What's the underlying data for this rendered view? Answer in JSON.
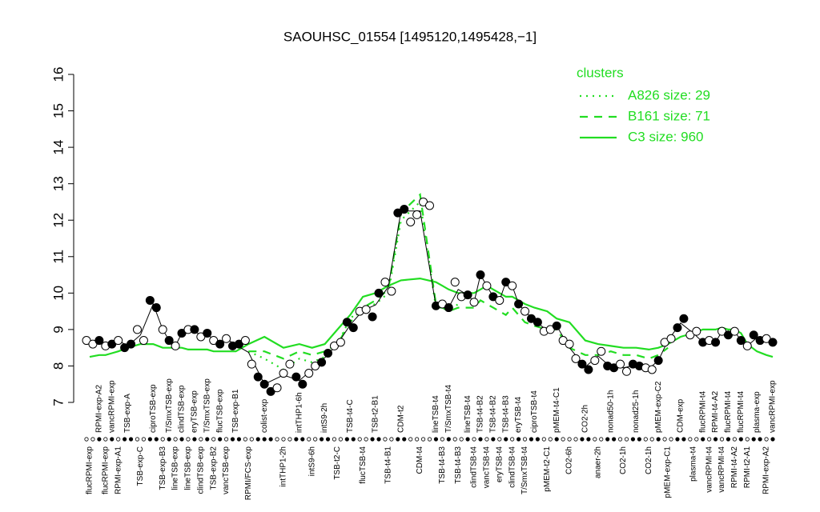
{
  "chart_data": {
    "type": "line",
    "title": "SAOUHSC_01554 [1495120,1495428,−1]",
    "ylim": [
      7,
      16
    ],
    "yticks": [
      7,
      8,
      9,
      10,
      11,
      12,
      13,
      14,
      15,
      16
    ],
    "legend_title": "clusters",
    "legend_position": "upper right",
    "groups": [
      {
        "name": "flucRPMI-exp",
        "values": [
          8.7,
          8.6
        ]
      },
      {
        "name": "RPMI-exp-A2",
        "values": [
          8.7
        ]
      },
      {
        "name": "flucRPMI-exp",
        "values": [
          8.55
        ]
      },
      {
        "name": "vancRPMI-exp",
        "values": [
          8.6
        ]
      },
      {
        "name": "RPMI-exp-A1",
        "values": [
          8.7
        ]
      },
      {
        "name": "TSB-exp-A",
        "values": [
          8.5,
          8.6
        ]
      },
      {
        "name": "TSB-exp-C",
        "values": [
          9.0,
          8.7
        ]
      },
      {
        "name": "ciproTSB-exp",
        "values": [
          9.8,
          9.6
        ]
      },
      {
        "name": "TSB-exp-B3",
        "values": [
          9.0
        ]
      },
      {
        "name": "T/SmxTSB-exp",
        "values": [
          8.7
        ]
      },
      {
        "name": "lineTSB-exp",
        "values": [
          8.55
        ]
      },
      {
        "name": "clindTSB-exp",
        "values": [
          8.9
        ]
      },
      {
        "name": "lineTSB-exp",
        "values": [
          9.0
        ]
      },
      {
        "name": "eryTSB-exp",
        "values": [
          9.0
        ]
      },
      {
        "name": "clindTSB-exp",
        "values": [
          8.8
        ]
      },
      {
        "name": "T/SmxTSB-exp",
        "values": [
          8.9
        ]
      },
      {
        "name": "TSB-exp-B2",
        "values": [
          8.7
        ]
      },
      {
        "name": "flucTSB-exp",
        "values": [
          8.6
        ]
      },
      {
        "name": "vancTSB-exp",
        "values": [
          8.75
        ]
      },
      {
        "name": "TSB-exp-B1",
        "values": [
          8.55,
          8.6
        ]
      },
      {
        "name": "RPMI/FCS-exp",
        "values": [
          8.7,
          8.05
        ]
      },
      {
        "name": "colist-exp",
        "values": [
          7.7,
          7.5,
          7.3
        ]
      },
      {
        "name": "intTHP1-2h",
        "values": [
          7.4,
          7.8,
          8.05
        ]
      },
      {
        "name": "intTHP1-6h",
        "values": [
          7.7,
          7.5
        ]
      },
      {
        "name": "intS9-6h",
        "values": [
          7.8,
          8.0
        ]
      },
      {
        "name": "intS9-2h",
        "values": [
          8.1,
          8.35
        ]
      },
      {
        "name": "TSB-t2-C",
        "values": [
          8.55,
          8.65
        ]
      },
      {
        "name": "TSB-t4-C",
        "values": [
          9.2,
          9.05
        ]
      },
      {
        "name": "flucTSB-t4",
        "values": [
          9.5,
          9.55
        ]
      },
      {
        "name": "TSB-t2-B1",
        "values": [
          9.35,
          10.0
        ]
      },
      {
        "name": "TSB-t4-B1",
        "values": [
          10.3,
          10.05
        ]
      },
      {
        "name": "CDM-t2",
        "values": [
          12.2,
          12.3
        ]
      },
      {
        "name": "CDM-t4",
        "values": [
          11.95,
          12.15,
          12.5,
          12.4
        ]
      },
      {
        "name": "lineTSB-t4",
        "values": [
          9.65
        ]
      },
      {
        "name": "TSB-t4-B3",
        "values": [
          9.7
        ]
      },
      {
        "name": "T/SmxTSB-t4",
        "values": [
          9.6
        ]
      },
      {
        "name": "TSB-t4-B3",
        "values": [
          10.3,
          9.9
        ]
      },
      {
        "name": "lineTSB-t4",
        "values": [
          9.95
        ]
      },
      {
        "name": "clindTSB-t4",
        "values": [
          9.75
        ]
      },
      {
        "name": "TSB-t4-B2",
        "values": [
          10.5
        ]
      },
      {
        "name": "vancTSB-t4",
        "values": [
          10.2
        ]
      },
      {
        "name": "TSB-t4-B2",
        "values": [
          9.9
        ]
      },
      {
        "name": "eryTSB-t4",
        "values": [
          9.8
        ]
      },
      {
        "name": "TSB-t4-B3",
        "values": [
          10.3
        ]
      },
      {
        "name": "clindTSB-t4",
        "values": [
          10.2
        ]
      },
      {
        "name": "eryTSB-t4",
        "values": [
          9.7
        ]
      },
      {
        "name": "T/SmxTSB-t4",
        "values": [
          9.5
        ]
      },
      {
        "name": "ciproTSB-t4",
        "values": [
          9.3,
          9.2
        ]
      },
      {
        "name": "pMEM-t2-C1",
        "values": [
          8.95,
          9.0
        ]
      },
      {
        "name": "pMEM-t4-C1",
        "values": [
          9.1
        ]
      },
      {
        "name": "CO2-6h",
        "values": [
          8.7,
          8.6,
          8.2
        ]
      },
      {
        "name": "CO2-2h",
        "values": [
          8.05,
          7.9
        ]
      },
      {
        "name": "anaer-2h",
        "values": [
          8.15,
          8.4
        ]
      },
      {
        "name": "nonad50-1h",
        "values": [
          8.0,
          7.95
        ]
      },
      {
        "name": "CO2-1h",
        "values": [
          8.05,
          7.85
        ]
      },
      {
        "name": "nonad25-1h",
        "values": [
          8.05,
          8.0
        ]
      },
      {
        "name": "CO2-1h",
        "values": [
          7.95,
          7.9
        ]
      },
      {
        "name": "pMEM-exp-C2",
        "values": [
          8.15
        ]
      },
      {
        "name": "pMEM-exp-C1",
        "values": [
          8.65,
          8.75
        ]
      },
      {
        "name": "CDM-exp",
        "values": [
          9.05,
          9.3
        ]
      },
      {
        "name": "plasma-t4",
        "values": [
          8.85,
          8.95
        ]
      },
      {
        "name": "flucRPMI-t4",
        "values": [
          8.65
        ]
      },
      {
        "name": "vancRPMI-t4",
        "values": [
          8.7
        ]
      },
      {
        "name": "RPMI-t4-A2",
        "values": [
          8.65
        ]
      },
      {
        "name": "vancRPMI-t4",
        "values": [
          8.95
        ]
      },
      {
        "name": "flucRPMI-t4",
        "values": [
          8.85
        ]
      },
      {
        "name": "RPMI-t4-A2",
        "values": [
          8.95
        ]
      },
      {
        "name": "flucRPMI-t4",
        "values": [
          8.7
        ]
      },
      {
        "name": "RPMI-t2-A1",
        "values": [
          8.55
        ]
      },
      {
        "name": "plasma-exp",
        "values": [
          8.85,
          8.7
        ]
      },
      {
        "name": "RPMI-exp-A2",
        "values": [
          8.75
        ]
      },
      {
        "name": "vancRPMI-exp",
        "values": [
          8.65
        ]
      }
    ],
    "series": [
      {
        "name": "A826 size: 29",
        "color": "#22dd22",
        "style": "dotted",
        "values": [
          null,
          null,
          null,
          null,
          null,
          null,
          null,
          null,
          null,
          null,
          null,
          null,
          null,
          null,
          null,
          null,
          null,
          null,
          null,
          null,
          8.4,
          8.2,
          7.9,
          8.2,
          8.1,
          8.25,
          8.6,
          9.3,
          9.6,
          9.7,
          10.0,
          12.0,
          12.5,
          9.6,
          9.6,
          9.5,
          9.7,
          null,
          null,
          null,
          null,
          null,
          null,
          null,
          null,
          null,
          null,
          null,
          null,
          null,
          null,
          null,
          null,
          null,
          null,
          null,
          null,
          null,
          null,
          null,
          null,
          null,
          null,
          null,
          null,
          null,
          null,
          null,
          null,
          null,
          null,
          null
        ]
      },
      {
        "name": "B161 size: 71",
        "color": "#22dd22",
        "style": "dashed",
        "values": [
          null,
          null,
          null,
          null,
          null,
          null,
          null,
          null,
          null,
          null,
          null,
          null,
          null,
          null,
          null,
          null,
          null,
          null,
          null,
          null,
          8.4,
          8.4,
          8.2,
          8.4,
          8.3,
          8.4,
          8.6,
          9.2,
          9.6,
          9.8,
          10.1,
          12.2,
          12.7,
          9.7,
          9.6,
          9.5,
          9.6,
          9.6,
          9.6,
          9.8,
          9.7,
          9.6,
          9.5,
          9.4,
          9.6,
          9.4,
          9.2,
          9.1,
          9.0,
          9.0,
          8.5,
          8.3,
          8.3,
          8.4,
          8.3,
          8.3,
          8.2,
          8.3,
          8.5,
          null,
          null,
          null,
          null,
          null,
          null,
          null,
          null,
          null,
          null,
          null,
          null,
          null
        ]
      },
      {
        "name": "C3 size: 960",
        "color": "#22dd22",
        "style": "solid",
        "values": [
          8.25,
          8.3,
          8.3,
          8.35,
          8.4,
          8.5,
          8.6,
          8.6,
          8.5,
          8.5,
          8.5,
          8.5,
          8.45,
          8.45,
          8.45,
          8.45,
          8.4,
          8.4,
          8.4,
          8.4,
          8.6,
          8.8,
          8.5,
          8.6,
          8.5,
          8.6,
          9.0,
          9.4,
          9.9,
          10.0,
          10.2,
          10.35,
          10.4,
          10.3,
          10.2,
          10.1,
          10.0,
          10.0,
          10.0,
          10.1,
          10.2,
          10.1,
          10.0,
          9.9,
          9.9,
          9.8,
          9.7,
          9.6,
          9.5,
          9.3,
          9.2,
          8.7,
          8.6,
          8.55,
          8.5,
          8.5,
          8.45,
          8.5,
          8.6,
          8.8,
          8.9,
          9.0,
          9.0,
          9.0,
          9.05,
          9.0,
          9.0,
          8.9,
          8.6,
          8.4,
          8.3,
          8.25
        ]
      }
    ]
  }
}
